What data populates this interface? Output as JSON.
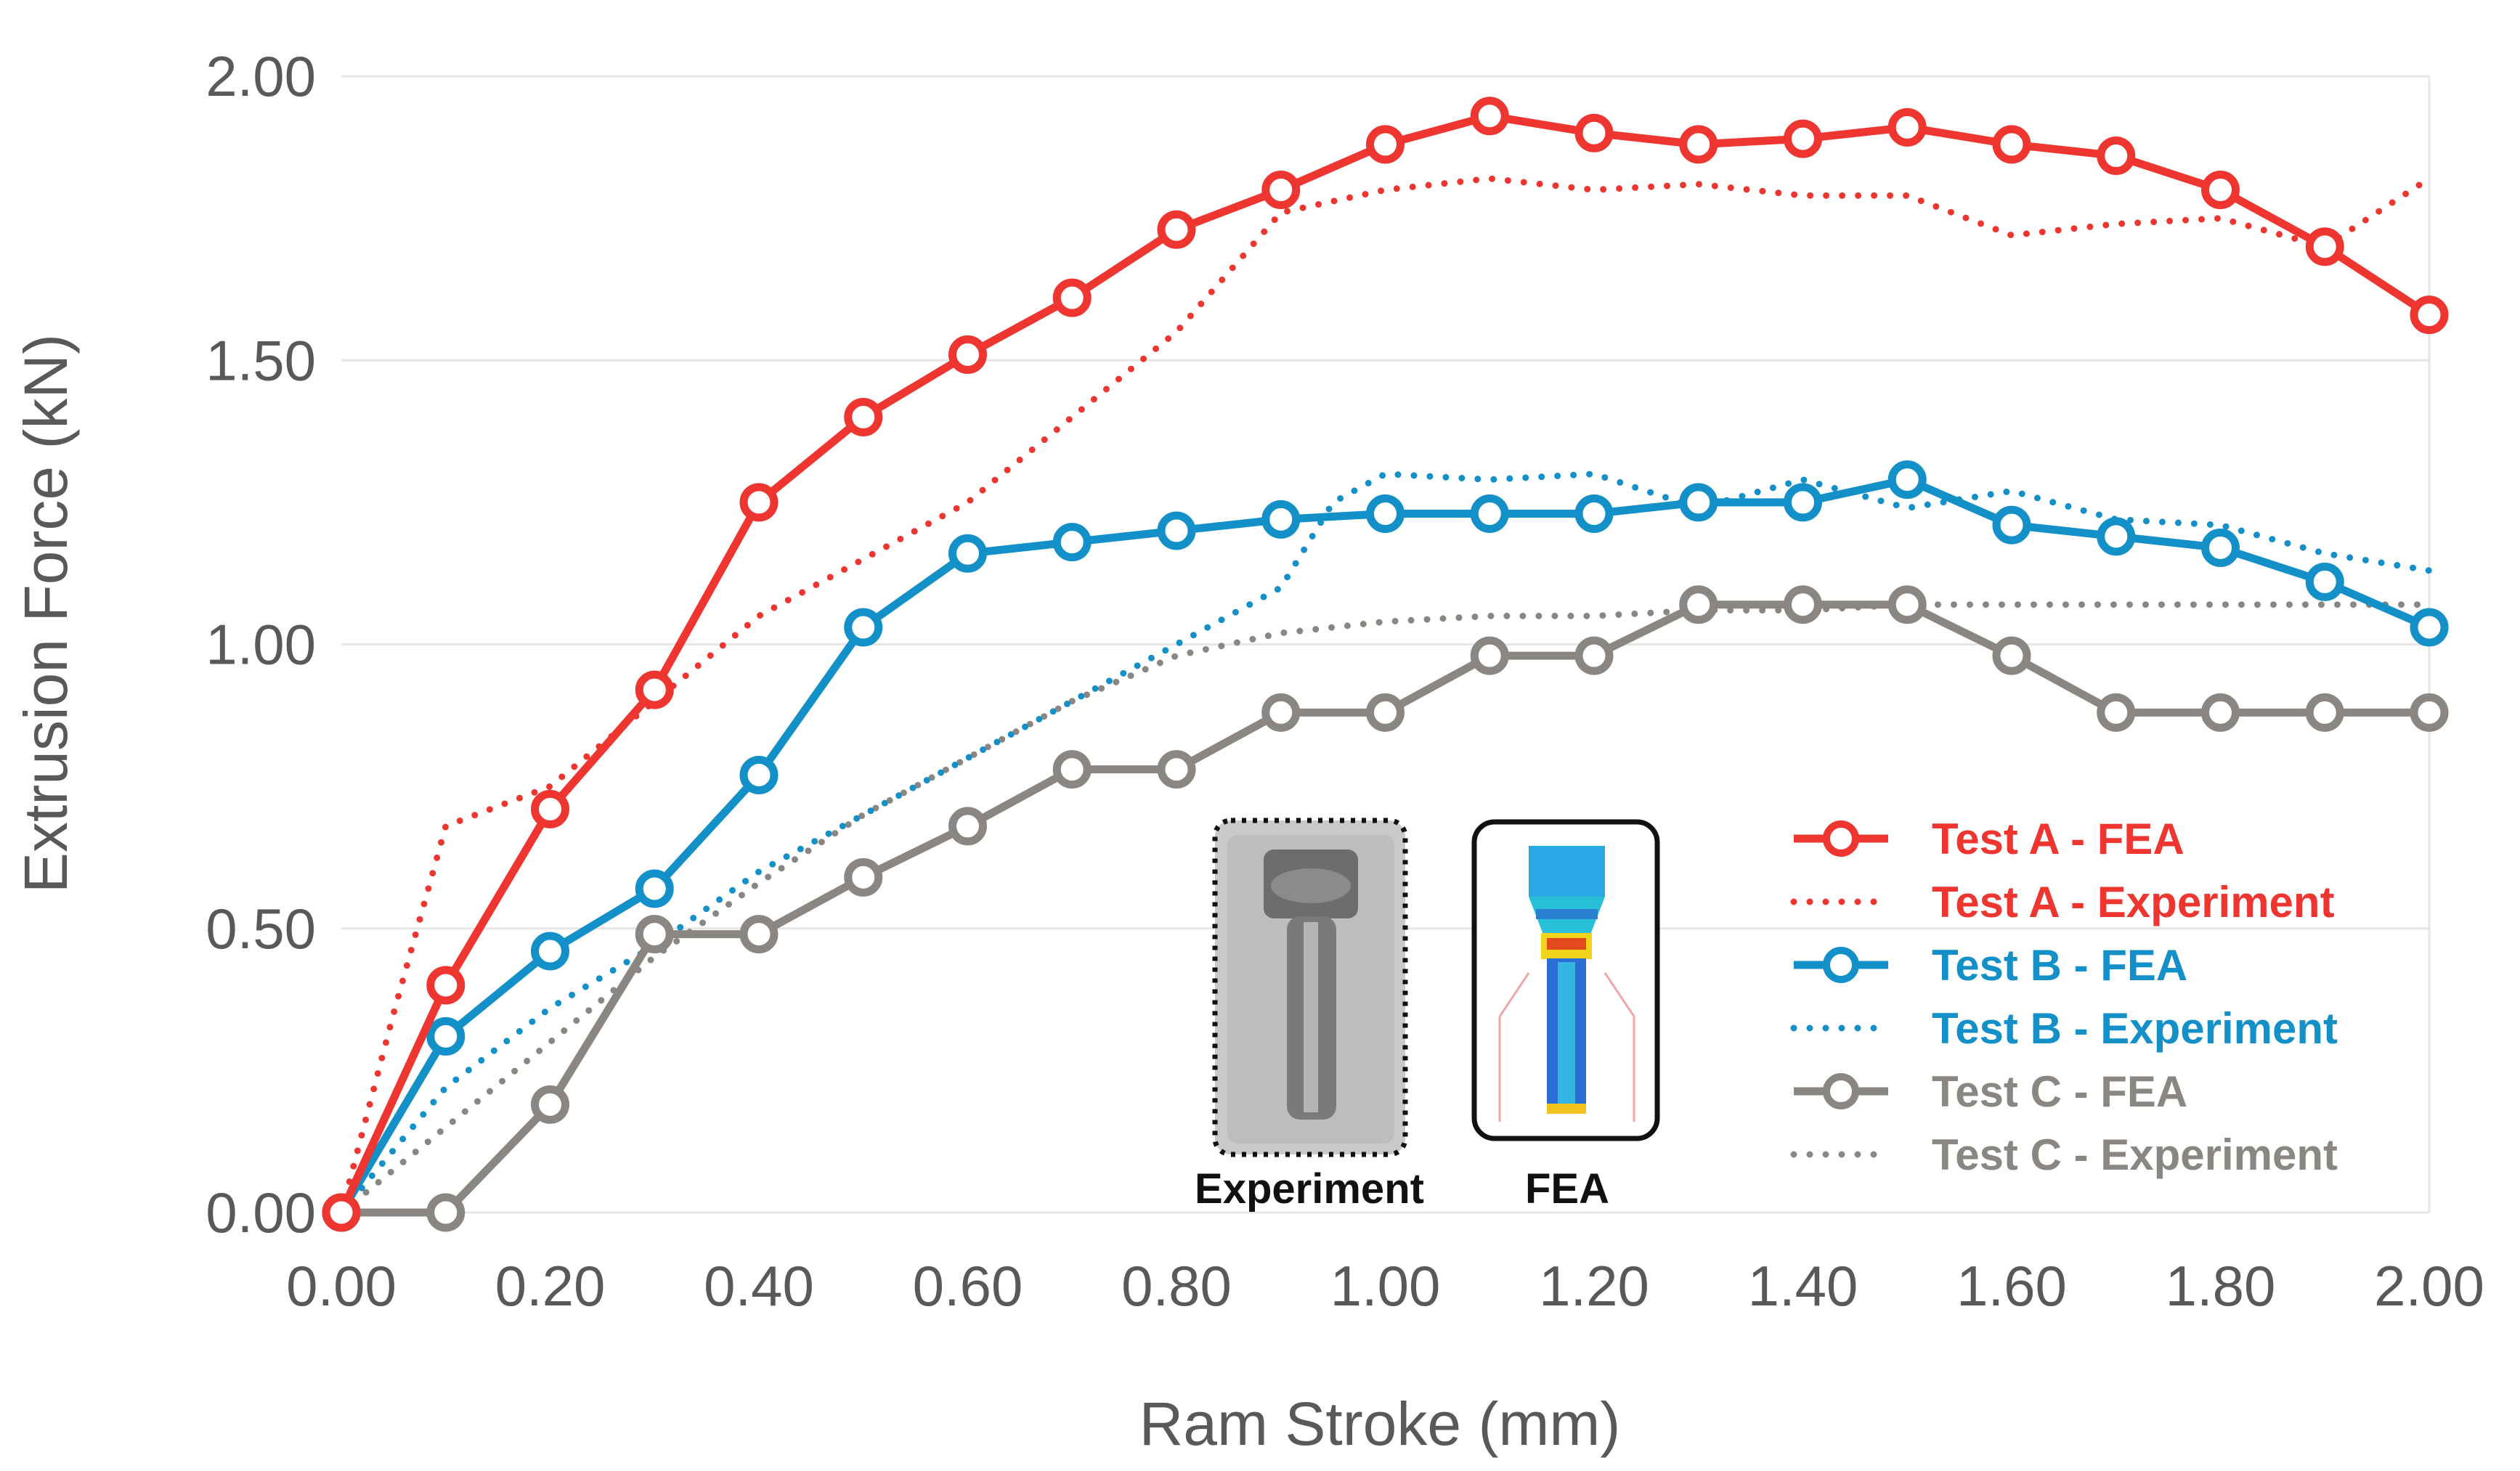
{
  "chart_data": {
    "type": "line",
    "title": "",
    "xlabel": "Ram Stroke (mm)",
    "ylabel": "Extrusion Force (kN)",
    "xlim": [
      0,
      2
    ],
    "ylim": [
      0,
      2
    ],
    "x_ticks": [
      "0.00",
      "0.20",
      "0.40",
      "0.60",
      "0.80",
      "1.00",
      "1.20",
      "1.40",
      "1.60",
      "1.80",
      "2.00"
    ],
    "y_ticks": [
      "0.00",
      "0.50",
      "1.00",
      "1.50",
      "2.00"
    ],
    "grid": "horizontal",
    "legend_position": "right",
    "series": [
      {
        "name": "Test A - FEA",
        "color": "#ee3530",
        "style": "solid-markers",
        "x": [
          0,
          0.1,
          0.2,
          0.3,
          0.4,
          0.5,
          0.6,
          0.7,
          0.8,
          0.9,
          1.0,
          1.1,
          1.2,
          1.3,
          1.4,
          1.5,
          1.6,
          1.7,
          1.8,
          1.9,
          2.0
        ],
        "y": [
          0,
          0.4,
          0.71,
          0.92,
          1.25,
          1.4,
          1.51,
          1.61,
          1.73,
          1.8,
          1.88,
          1.93,
          1.9,
          1.88,
          1.89,
          1.91,
          1.88,
          1.86,
          1.8,
          1.7,
          1.58
        ]
      },
      {
        "name": "Test A - Experiment",
        "color": "#ee3530",
        "style": "dotted",
        "x": [
          0,
          0.05,
          0.1,
          0.2,
          0.3,
          0.4,
          0.5,
          0.6,
          0.7,
          0.8,
          0.9,
          1.0,
          1.1,
          1.2,
          1.3,
          1.4,
          1.5,
          1.6,
          1.7,
          1.8,
          1.9,
          2.0
        ],
        "y": [
          0,
          0.35,
          0.68,
          0.75,
          0.9,
          1.05,
          1.15,
          1.25,
          1.4,
          1.55,
          1.76,
          1.8,
          1.82,
          1.8,
          1.81,
          1.79,
          1.79,
          1.72,
          1.74,
          1.75,
          1.7,
          1.82
        ]
      },
      {
        "name": "Test B - FEA",
        "color": "#1490c9",
        "style": "solid-markers",
        "x": [
          0,
          0.1,
          0.2,
          0.3,
          0.4,
          0.5,
          0.6,
          0.7,
          0.8,
          0.9,
          1.0,
          1.1,
          1.2,
          1.3,
          1.4,
          1.5,
          1.6,
          1.7,
          1.8,
          1.9,
          2.0
        ],
        "y": [
          0,
          0.31,
          0.46,
          0.57,
          0.77,
          1.03,
          1.16,
          1.18,
          1.2,
          1.22,
          1.23,
          1.23,
          1.23,
          1.25,
          1.25,
          1.29,
          1.21,
          1.19,
          1.17,
          1.11,
          1.03
        ]
      },
      {
        "name": "Test B - Experiment",
        "color": "#1490c9",
        "style": "dotted",
        "x": [
          0,
          0.1,
          0.2,
          0.3,
          0.4,
          0.5,
          0.6,
          0.7,
          0.8,
          0.9,
          0.95,
          1.0,
          1.1,
          1.2,
          1.3,
          1.4,
          1.5,
          1.6,
          1.7,
          1.8,
          1.9,
          2.0
        ],
        "y": [
          0,
          0.22,
          0.36,
          0.47,
          0.6,
          0.7,
          0.8,
          0.9,
          1.0,
          1.1,
          1.25,
          1.3,
          1.29,
          1.3,
          1.24,
          1.29,
          1.24,
          1.27,
          1.22,
          1.21,
          1.16,
          1.13
        ]
      },
      {
        "name": "Test C - FEA",
        "color": "#8a8682",
        "style": "solid-markers",
        "x": [
          0,
          0.1,
          0.2,
          0.3,
          0.4,
          0.5,
          0.6,
          0.7,
          0.8,
          0.9,
          1.0,
          1.1,
          1.2,
          1.3,
          1.4,
          1.5,
          1.6,
          1.7,
          1.8,
          1.9,
          2.0
        ],
        "y": [
          0,
          0,
          0.19,
          0.49,
          0.49,
          0.59,
          0.68,
          0.78,
          0.78,
          0.88,
          0.88,
          0.98,
          0.98,
          1.07,
          1.07,
          1.07,
          0.98,
          0.88,
          0.88,
          0.88,
          0.88
        ]
      },
      {
        "name": "Test C - Experiment",
        "color": "#8a8682",
        "style": "dotted",
        "x": [
          0,
          0.1,
          0.2,
          0.3,
          0.4,
          0.5,
          0.6,
          0.7,
          0.8,
          0.9,
          1.0,
          1.1,
          1.2,
          1.3,
          1.4,
          1.5,
          1.6,
          1.7,
          1.8,
          1.9,
          2.0
        ],
        "y": [
          0,
          0.15,
          0.3,
          0.45,
          0.58,
          0.7,
          0.8,
          0.9,
          0.98,
          1.02,
          1.04,
          1.05,
          1.05,
          1.06,
          1.06,
          1.07,
          1.07,
          1.07,
          1.07,
          1.07,
          1.07
        ]
      }
    ],
    "inset": {
      "left_caption": "Experiment",
      "right_caption": "FEA"
    }
  }
}
